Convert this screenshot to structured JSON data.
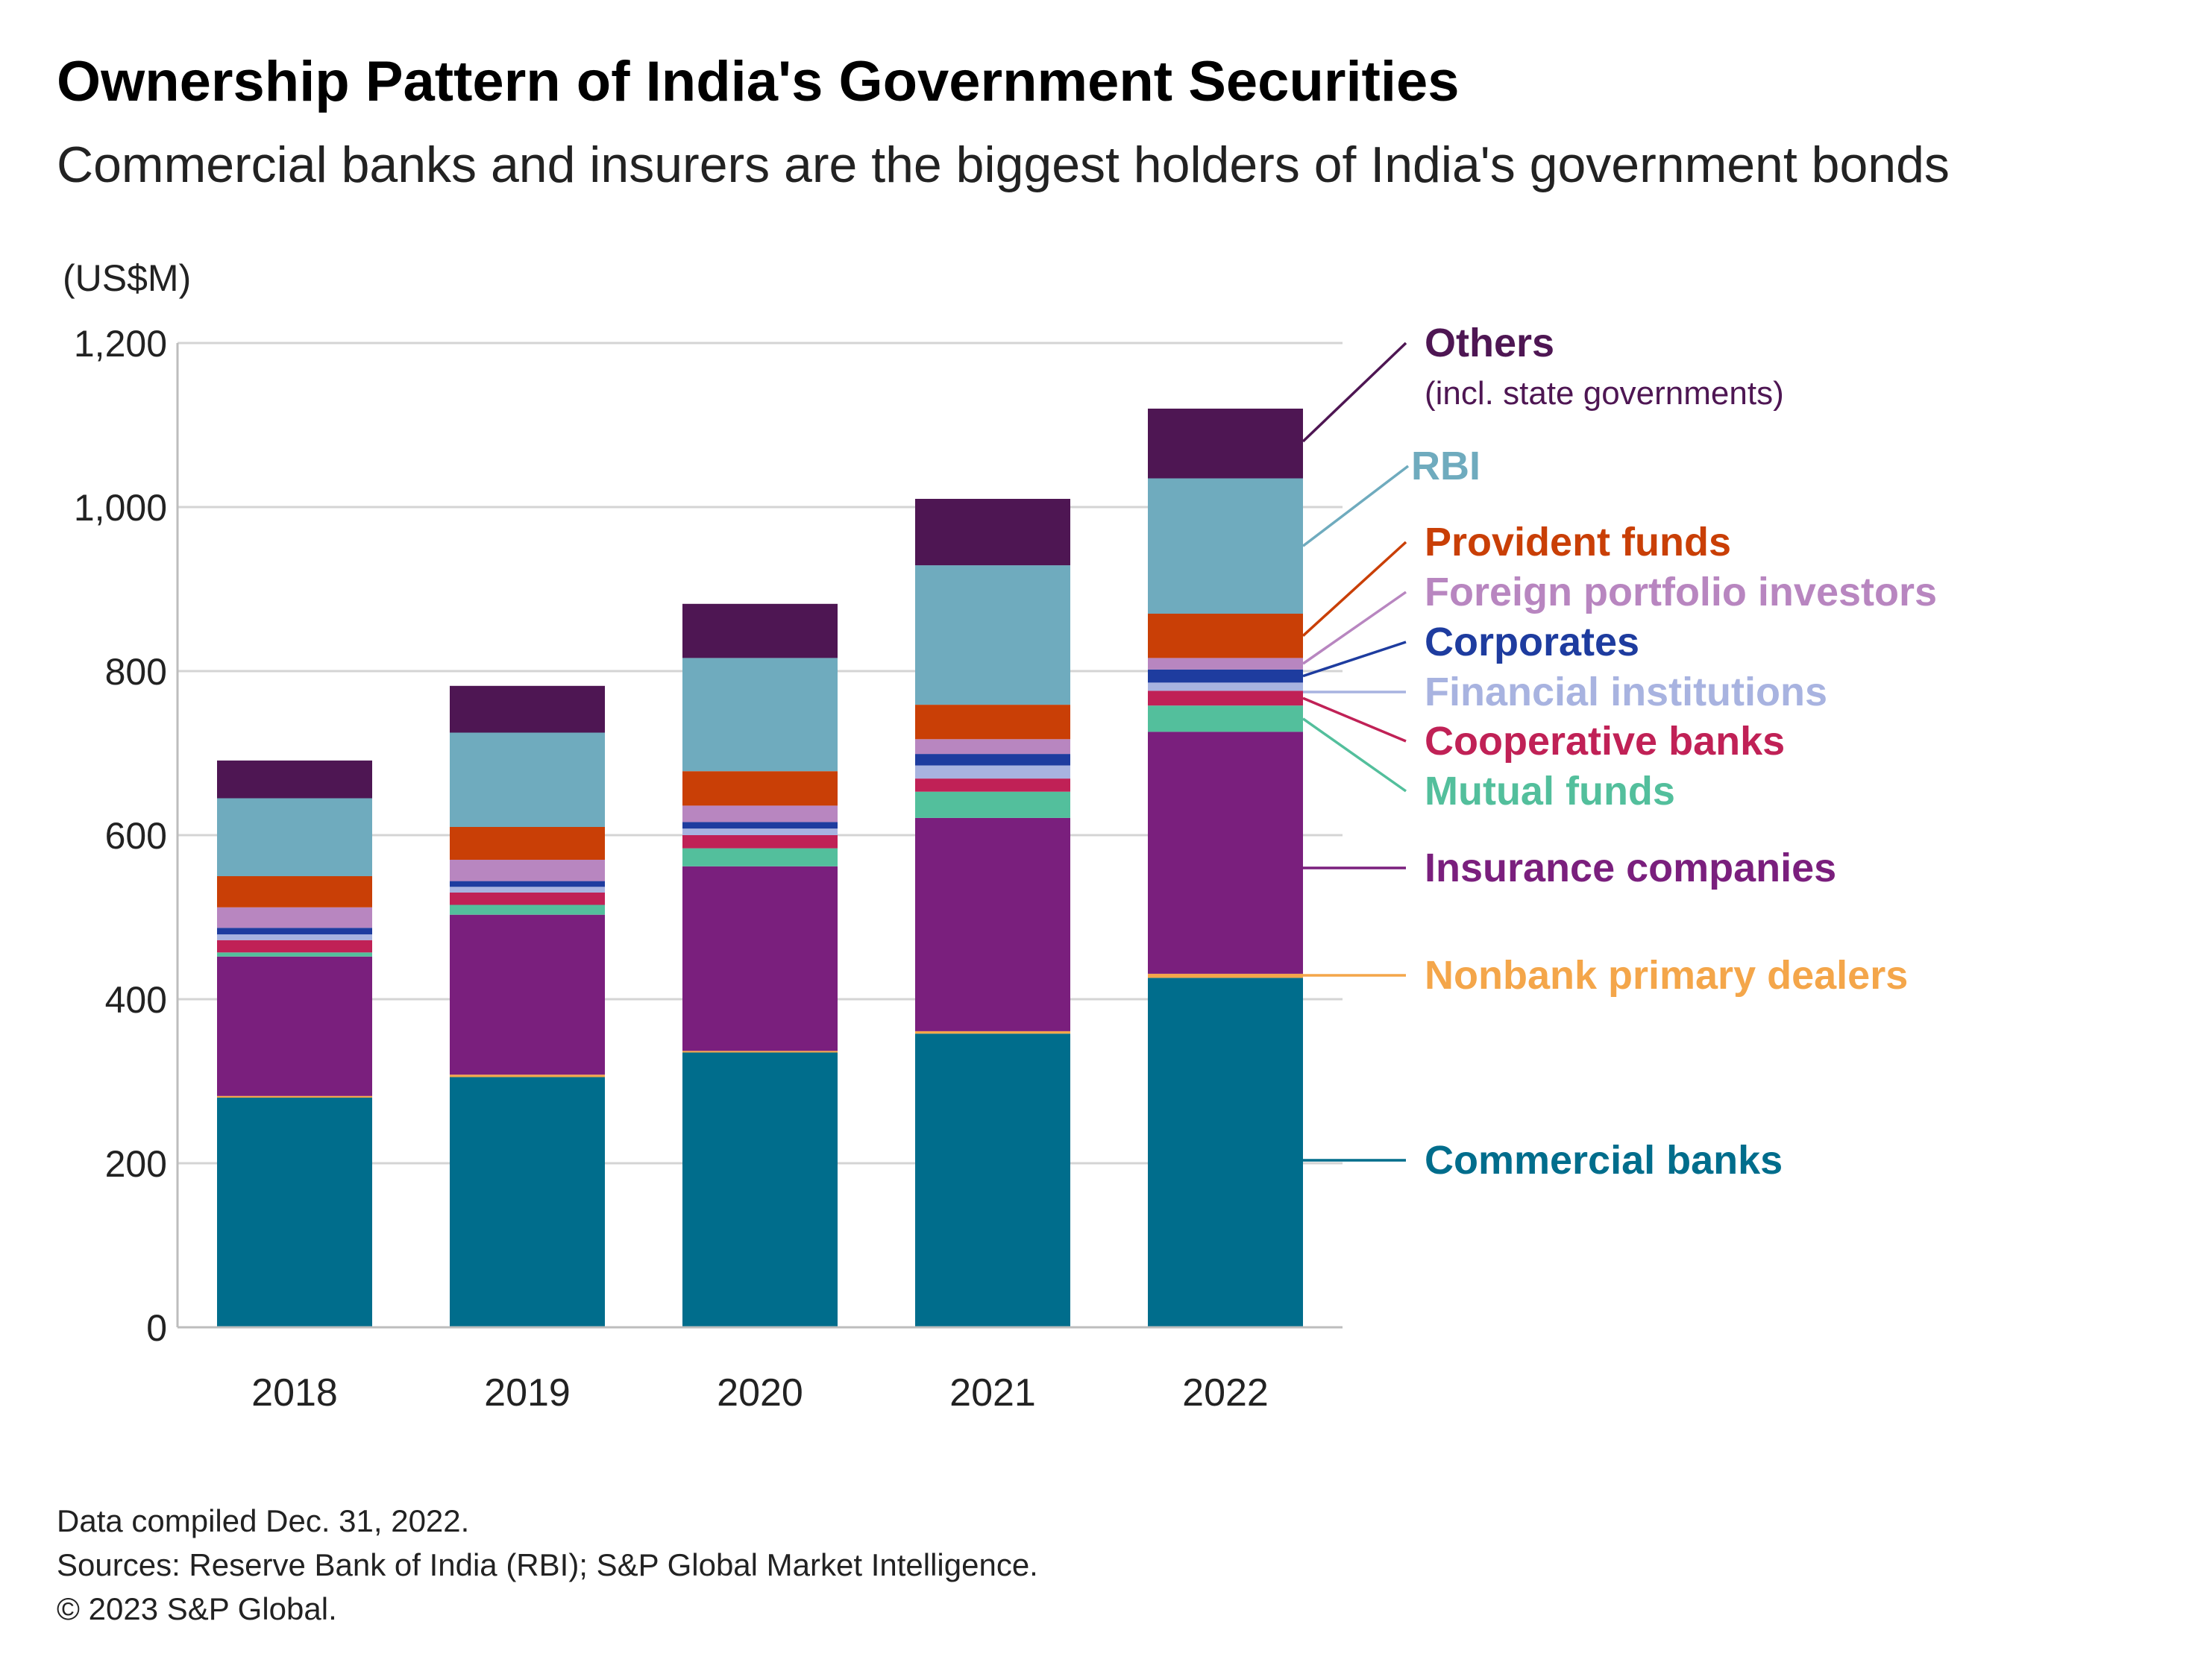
{
  "title": "Ownership Pattern of India's Government Securities",
  "subtitle": "Commercial banks and insurers are the biggest holders of India's government bonds",
  "footnotes": [
    "Data compiled Dec. 31, 2022.",
    "Sources: Reserve Bank of India (RBI); S&P Global Market Intelligence.",
    "© 2023 S&P Global."
  ],
  "chart_data": {
    "type": "bar",
    "stacked": true,
    "ylabel": "(US$M)",
    "ylim": [
      0,
      1200
    ],
    "yticks": [
      0,
      200,
      400,
      600,
      800,
      1000,
      1200
    ],
    "ytick_labels": [
      "0",
      "200",
      "400",
      "600",
      "800",
      "1,000",
      "1,200"
    ],
    "grid": true,
    "legend_placement": "right",
    "categories": [
      "2018",
      "2019",
      "2020",
      "2021",
      "2022"
    ],
    "series": [
      {
        "name": "Commercial banks",
        "color": "#006d8c",
        "values": [
          280,
          305,
          335,
          358,
          426
        ]
      },
      {
        "name": "Nonbank primary dealers",
        "color": "#f4a64a",
        "values": [
          2,
          3,
          2,
          3,
          5
        ]
      },
      {
        "name": "Insurance companies",
        "color": "#7a1f7d",
        "values": [
          170,
          195,
          225,
          260,
          295
        ]
      },
      {
        "name": "Mutual funds",
        "color": "#53bf9c",
        "values": [
          5,
          12,
          22,
          32,
          32
        ]
      },
      {
        "name": "Cooperative banks",
        "color": "#c02156",
        "values": [
          15,
          15,
          16,
          16,
          18
        ]
      },
      {
        "name": "Financial institutions",
        "color": "#a8b3e0",
        "values": [
          7,
          7,
          8,
          16,
          10
        ]
      },
      {
        "name": "Corporates",
        "color": "#1e3c9f",
        "values": [
          8,
          7,
          8,
          14,
          16
        ]
      },
      {
        "name": "Foreign portfolio investors",
        "color": "#b886c0",
        "values": [
          25,
          26,
          20,
          18,
          14
        ]
      },
      {
        "name": "Provident funds",
        "color": "#c93f06",
        "values": [
          38,
          40,
          42,
          42,
          54
        ]
      },
      {
        "name": "RBI",
        "color": "#6fabbe",
        "values": [
          95,
          115,
          138,
          170,
          165
        ]
      },
      {
        "name": "Others",
        "color": "#4e1653",
        "values": [
          46,
          57,
          66,
          81,
          85
        ]
      }
    ],
    "legend": [
      {
        "label": "Others",
        "note": "(incl. state governments)",
        "color": "#4e1653"
      },
      {
        "label": "RBI",
        "color": "#6fabbe"
      },
      {
        "label": "Provident funds",
        "color": "#c93f06"
      },
      {
        "label": "Foreign portfolio investors",
        "color": "#b886c0"
      },
      {
        "label": "Corporates",
        "color": "#1e3c9f"
      },
      {
        "label": "Financial institutions",
        "color": "#a8b3e0"
      },
      {
        "label": "Cooperative banks",
        "color": "#c02156"
      },
      {
        "label": "Mutual funds",
        "color": "#53bf9c"
      },
      {
        "label": "Insurance companies",
        "color": "#7a1f7d"
      },
      {
        "label": "Nonbank primary dealers",
        "color": "#f4a64a"
      },
      {
        "label": "Commercial banks",
        "color": "#006d8c"
      }
    ]
  }
}
